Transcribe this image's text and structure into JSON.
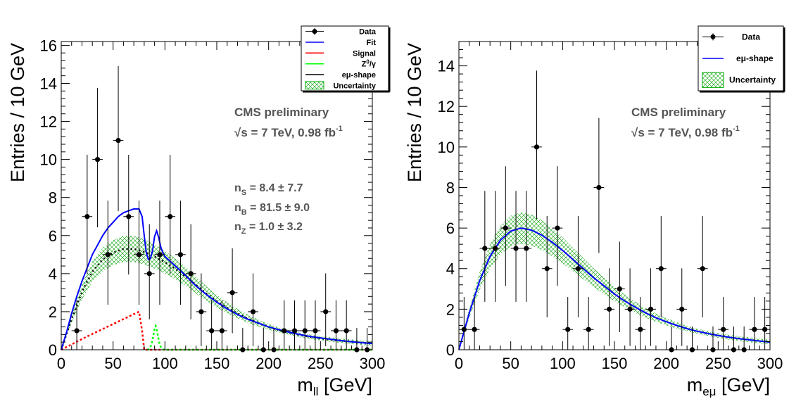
{
  "chart_data": [
    {
      "type": "scatter",
      "ylabel": "Entries / 10 GeV",
      "xlabel": "m",
      "xlabel_sub": "ll",
      "xlabel_unit": "[GeV]",
      "xlim": [
        0,
        300
      ],
      "ylim": [
        0,
        16.2
      ],
      "xticks": [
        0,
        50,
        100,
        150,
        200,
        250,
        300
      ],
      "yticks": [
        0,
        2,
        4,
        6,
        8,
        10,
        12,
        14,
        16
      ],
      "annotations": {
        "cms": "CMS preliminary",
        "lumi_sqrt": "√s = 7 TeV, 0.98 fb",
        "lumi_sup": "-1",
        "ns_sub": "S",
        "ns_val": " = 8.4 ± 7.7",
        "nb_sub": "B",
        "nb_val": " = 81.5 ± 9.0",
        "nz_sub": "Z",
        "nz_val": " = 1.0 ± 3.2"
      },
      "legend": {
        "position": "top-right",
        "entries": [
          {
            "label": "Data",
            "style": "marker"
          },
          {
            "label": "Fit",
            "style": "line",
            "color": "#0000ff"
          },
          {
            "label": "Signal",
            "style": "line",
            "color": "#ff0000"
          },
          {
            "label": "Z/γ",
            "label_sup": "0",
            "style": "line",
            "color": "#00ff00"
          },
          {
            "label": "eμ-shape",
            "style": "line",
            "color": "#000000"
          },
          {
            "label": "Uncertainty",
            "style": "box",
            "color": "#00aa00"
          }
        ]
      },
      "series": [
        {
          "name": "Data",
          "x": [
            15,
            25,
            35,
            45,
            55,
            65,
            75,
            85,
            95,
            105,
            115,
            125,
            135,
            145,
            155,
            165,
            175,
            185,
            195,
            205,
            215,
            225,
            235,
            245,
            255,
            265,
            275,
            285,
            295
          ],
          "y": [
            1,
            7,
            10,
            5,
            11,
            7,
            5,
            4,
            5,
            7,
            5,
            4,
            2,
            1,
            1,
            3,
            0,
            2,
            0,
            0,
            1,
            1,
            1,
            1,
            2,
            1,
            1,
            0,
            0
          ]
        },
        {
          "name": "Fit",
          "x": [
            0,
            5,
            10,
            15,
            20,
            25,
            30,
            35,
            40,
            45,
            50,
            55,
            60,
            65,
            70,
            75,
            78,
            80,
            82,
            84,
            86,
            88,
            90,
            92,
            94,
            96,
            98,
            100,
            110,
            120,
            130,
            140,
            150,
            160,
            170,
            180,
            190,
            200,
            210,
            220,
            230,
            240,
            250,
            260,
            270,
            280,
            290,
            300
          ],
          "y": [
            0,
            0.9,
            1.9,
            2.8,
            3.6,
            4.3,
            5.0,
            5.5,
            6.0,
            6.4,
            6.7,
            7.0,
            7.2,
            7.3,
            7.4,
            7.4,
            7.0,
            6.0,
            5.1,
            4.75,
            4.8,
            5.2,
            5.95,
            6.25,
            5.9,
            5.4,
            5.1,
            4.9,
            4.4,
            3.9,
            3.35,
            2.9,
            2.5,
            2.15,
            1.85,
            1.6,
            1.4,
            1.2,
            1.05,
            0.92,
            0.8,
            0.7,
            0.62,
            0.55,
            0.48,
            0.42,
            0.37,
            0.33
          ]
        },
        {
          "name": "Signal",
          "x": [
            0,
            25,
            50,
            75,
            78,
            80,
            300
          ],
          "y": [
            0,
            0.7,
            1.35,
            2.0,
            1.0,
            0.0,
            0.0
          ]
        },
        {
          "name": "Z/γ",
          "x": [
            83,
            85,
            87,
            89,
            90,
            91,
            92,
            93,
            95,
            97,
            99,
            300
          ],
          "y": [
            0,
            0.05,
            0.25,
            0.8,
            1.1,
            1.25,
            1.1,
            0.8,
            0.25,
            0.05,
            0,
            0
          ]
        },
        {
          "name": "eμ-shape",
          "x": [
            0,
            10,
            20,
            30,
            40,
            50,
            60,
            70,
            80,
            90,
            100,
            110,
            120,
            130,
            140,
            150,
            160,
            170,
            180,
            190,
            200,
            210,
            220,
            230,
            240,
            250,
            260,
            270,
            280,
            290,
            300
          ],
          "y": [
            0,
            1.6,
            3.05,
            4.1,
            4.75,
            5.1,
            5.3,
            5.3,
            5.15,
            4.9,
            4.6,
            4.25,
            3.85,
            3.4,
            2.95,
            2.55,
            2.2,
            1.9,
            1.63,
            1.4,
            1.2,
            1.04,
            0.9,
            0.78,
            0.68,
            0.6,
            0.53,
            0.47,
            0.42,
            0.37,
            0.33
          ]
        }
      ]
    },
    {
      "type": "scatter",
      "ylabel": "Entries / 10 GeV",
      "xlabel": "m",
      "xlabel_sub": "eμ",
      "xlabel_unit": "[GeV]",
      "xlim": [
        0,
        300
      ],
      "ylim": [
        0,
        15.2
      ],
      "xticks": [
        0,
        50,
        100,
        150,
        200,
        250,
        300
      ],
      "yticks": [
        0,
        2,
        4,
        6,
        8,
        10,
        12,
        14
      ],
      "annotations": {
        "cms": "CMS preliminary",
        "lumi_sqrt": "√s = 7 TeV, 0.98 fb",
        "lumi_sup": "-1"
      },
      "legend": {
        "position": "top-right",
        "entries": [
          {
            "label": "Data",
            "style": "marker"
          },
          {
            "label": "eμ-shape",
            "style": "line",
            "color": "#0000ff"
          },
          {
            "label": "Uncertainty",
            "style": "box",
            "color": "#00aa00"
          }
        ]
      },
      "series": [
        {
          "name": "Data",
          "x": [
            5,
            15,
            25,
            35,
            45,
            55,
            65,
            75,
            85,
            95,
            105,
            115,
            125,
            135,
            145,
            155,
            165,
            175,
            185,
            195,
            205,
            215,
            225,
            235,
            245,
            255,
            265,
            275,
            285,
            295
          ],
          "y": [
            1,
            1,
            5,
            5,
            6,
            5,
            5,
            10,
            4,
            6,
            1,
            4,
            1,
            8,
            2,
            3,
            2,
            1,
            2,
            4,
            0,
            2,
            0,
            4,
            0,
            1,
            0,
            0,
            1,
            1
          ]
        },
        {
          "name": "eμ-shape",
          "x": [
            0,
            10,
            20,
            30,
            40,
            50,
            60,
            70,
            80,
            90,
            100,
            110,
            120,
            130,
            140,
            150,
            160,
            170,
            180,
            190,
            200,
            210,
            220,
            230,
            240,
            250,
            260,
            270,
            280,
            290,
            300
          ],
          "y": [
            0,
            1.8,
            3.4,
            4.6,
            5.4,
            5.85,
            6.0,
            5.9,
            5.65,
            5.3,
            4.9,
            4.45,
            4.0,
            3.55,
            3.15,
            2.75,
            2.4,
            2.1,
            1.82,
            1.58,
            1.38,
            1.2,
            1.04,
            0.91,
            0.8,
            0.7,
            0.62,
            0.55,
            0.49,
            0.43,
            0.38
          ]
        }
      ]
    }
  ]
}
